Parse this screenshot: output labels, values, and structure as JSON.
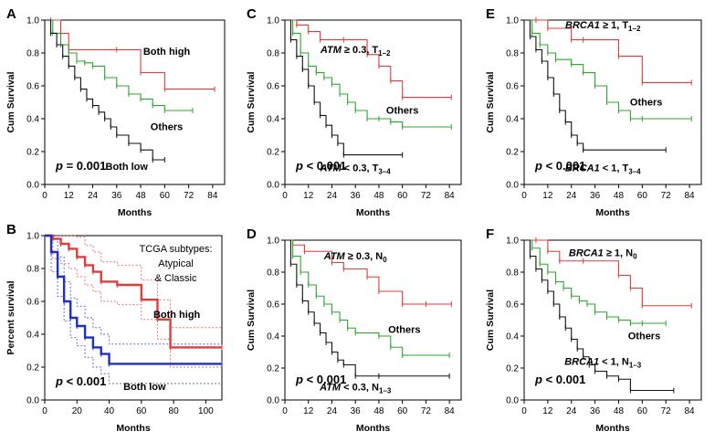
{
  "figure": "Kaplan-Meier survival curves (panels A–F)",
  "chart_data": [
    {
      "panel": "A",
      "type": "line",
      "xlabel": "Months",
      "ylabel": "Cum Survival",
      "xlim": [
        0,
        90
      ],
      "ylim": [
        0,
        1.0
      ],
      "xticks": [
        0,
        12,
        24,
        36,
        48,
        60,
        72,
        84
      ],
      "yticks": [
        0,
        0.2,
        0.4,
        0.6,
        0.8,
        1.0
      ],
      "p_value": {
        "prefix": "p",
        "rest": " = 0.001"
      },
      "series": [
        {
          "name": "Both high",
          "color": "#e03c3c",
          "x": [
            0,
            3,
            8,
            12,
            36,
            48,
            60,
            85
          ],
          "y": [
            1.0,
            1.0,
            0.92,
            0.82,
            0.82,
            0.68,
            0.58,
            0.58
          ]
        },
        {
          "name": "Others",
          "color": "#2aa82a",
          "x": [
            0,
            4,
            8,
            12,
            16,
            20,
            24,
            30,
            36,
            42,
            48,
            54,
            60,
            74
          ],
          "y": [
            1.0,
            0.92,
            0.85,
            0.8,
            0.75,
            0.74,
            0.72,
            0.65,
            0.6,
            0.55,
            0.52,
            0.48,
            0.45,
            0.45
          ]
        },
        {
          "name": "Both low",
          "color": "#111111",
          "x": [
            0,
            3,
            6,
            9,
            12,
            15,
            18,
            21,
            24,
            27,
            30,
            33,
            36,
            42,
            48,
            54,
            60
          ],
          "y": [
            1.0,
            0.92,
            0.85,
            0.78,
            0.72,
            0.65,
            0.58,
            0.52,
            0.48,
            0.44,
            0.4,
            0.35,
            0.3,
            0.25,
            0.21,
            0.15,
            0.15
          ]
        }
      ],
      "annotations": [
        {
          "text": "Both high",
          "x": 61,
          "y": 0.79
        },
        {
          "text": "Others",
          "x": 61,
          "y": 0.33
        },
        {
          "text": "Both low",
          "x": 41,
          "y": 0.09
        }
      ]
    },
    {
      "panel": "B",
      "type": "line",
      "xlabel": "Months",
      "ylabel": "Percent survival",
      "xlim": [
        0,
        110
      ],
      "ylim": [
        0,
        1.0
      ],
      "xticks": [
        0,
        20,
        40,
        60,
        80,
        100
      ],
      "yticks": [
        0,
        0.2,
        0.4,
        0.6,
        0.8,
        1.0
      ],
      "p_value": {
        "prefix": "p",
        "rest": " < 0.001"
      },
      "title_lines": [
        "TCGA subtypes:",
        "Atypical",
        "& Classic"
      ],
      "series": [
        {
          "name": "Both high",
          "color": "#e03c3c",
          "x": [
            0,
            5,
            10,
            15,
            20,
            25,
            30,
            35,
            45,
            60,
            70,
            78,
            110
          ],
          "y": [
            1.0,
            0.98,
            0.95,
            0.92,
            0.87,
            0.82,
            0.78,
            0.72,
            0.7,
            0.61,
            0.49,
            0.32,
            0.32
          ]
        },
        {
          "name": "Both low",
          "color": "#1f2fbf",
          "x": [
            0,
            4,
            8,
            12,
            16,
            20,
            25,
            30,
            35,
            40,
            110
          ],
          "y": [
            1.0,
            0.9,
            0.75,
            0.6,
            0.5,
            0.45,
            0.38,
            0.32,
            0.28,
            0.22,
            0.22
          ]
        }
      ],
      "annotations": [
        {
          "text": "Both high",
          "x": 82,
          "y": 0.5
        },
        {
          "text": "Both low",
          "x": 62,
          "y": 0.06
        }
      ]
    },
    {
      "panel": "C",
      "type": "line",
      "xlabel": "Months",
      "ylabel": "Cum Survival",
      "xlim": [
        0,
        90
      ],
      "ylim": [
        0,
        1.0
      ],
      "xticks": [
        0,
        12,
        24,
        36,
        48,
        60,
        72,
        84
      ],
      "yticks": [
        0,
        0.2,
        0.4,
        0.6,
        0.8,
        1.0
      ],
      "p_value": {
        "prefix": "p",
        "rest": " < 0.001"
      },
      "series": [
        {
          "name": "ATM ≥ 0.3, T1–2",
          "color": "#e03c3c",
          "x": [
            0,
            6,
            12,
            18,
            30,
            42,
            48,
            54,
            60,
            85
          ],
          "y": [
            1.0,
            0.97,
            0.93,
            0.88,
            0.88,
            0.79,
            0.72,
            0.63,
            0.53,
            0.53
          ]
        },
        {
          "name": "Others",
          "color": "#2aa82a",
          "x": [
            0,
            4,
            8,
            12,
            16,
            20,
            24,
            28,
            32,
            36,
            42,
            48,
            54,
            60,
            85
          ],
          "y": [
            1.0,
            0.92,
            0.8,
            0.72,
            0.68,
            0.65,
            0.61,
            0.55,
            0.5,
            0.45,
            0.4,
            0.4,
            0.38,
            0.35,
            0.35
          ]
        },
        {
          "name": "ATM < 0.3, T3–4",
          "color": "#111111",
          "x": [
            0,
            3,
            6,
            9,
            12,
            15,
            18,
            21,
            24,
            27,
            30,
            60
          ],
          "y": [
            1.0,
            0.88,
            0.78,
            0.7,
            0.6,
            0.5,
            0.42,
            0.36,
            0.3,
            0.25,
            0.18,
            0.18
          ]
        }
      ],
      "annotations": [
        {
          "text": "ATM ≥ 0.3, T1–2",
          "x": 36,
          "y": 0.8
        },
        {
          "text": "Others",
          "x": 60,
          "y": 0.43
        },
        {
          "text": "ATM < 0.3, T3–4",
          "x": 36,
          "y": 0.08
        }
      ]
    },
    {
      "panel": "D",
      "type": "line",
      "xlabel": "Months",
      "ylabel": "Cum Survival",
      "xlim": [
        0,
        90
      ],
      "ylim": [
        0,
        1.0
      ],
      "xticks": [
        0,
        12,
        24,
        36,
        48,
        60,
        72,
        84
      ],
      "yticks": [
        0,
        0.2,
        0.4,
        0.6,
        0.8,
        1.0
      ],
      "p_value": {
        "prefix": "p",
        "rest": " < 0.001"
      },
      "series": [
        {
          "name": "ATM ≥ 0.3, N0",
          "color": "#e03c3c",
          "x": [
            0,
            4,
            10,
            24,
            30,
            42,
            48,
            60,
            72,
            85
          ],
          "y": [
            1.0,
            0.97,
            0.93,
            0.86,
            0.82,
            0.77,
            0.68,
            0.6,
            0.6,
            0.6
          ]
        },
        {
          "name": "Others",
          "color": "#2aa82a",
          "x": [
            0,
            4,
            8,
            12,
            16,
            20,
            24,
            28,
            32,
            36,
            48,
            54,
            60,
            84
          ],
          "y": [
            1.0,
            0.9,
            0.8,
            0.72,
            0.65,
            0.6,
            0.55,
            0.5,
            0.45,
            0.42,
            0.4,
            0.33,
            0.28,
            0.28
          ]
        },
        {
          "name": "ATM < 0.3, N1–3",
          "color": "#111111",
          "x": [
            0,
            3,
            6,
            9,
            12,
            15,
            18,
            21,
            24,
            27,
            30,
            36,
            48,
            84
          ],
          "y": [
            1.0,
            0.85,
            0.72,
            0.62,
            0.55,
            0.48,
            0.42,
            0.36,
            0.3,
            0.25,
            0.22,
            0.15,
            0.15,
            0.15
          ]
        }
      ],
      "annotations": [
        {
          "text": "ATM ≥ 0.3, N0",
          "x": 36,
          "y": 0.88
        },
        {
          "text": "Others",
          "x": 61,
          "y": 0.42
        },
        {
          "text": "ATM < 0.3, N1–3",
          "x": 36,
          "y": 0.06
        }
      ]
    },
    {
      "panel": "E",
      "type": "line",
      "xlabel": "Months",
      "ylabel": "Cum Survival",
      "xlim": [
        0,
        90
      ],
      "ylim": [
        0,
        1.0
      ],
      "xticks": [
        0,
        12,
        24,
        36,
        48,
        60,
        72,
        84
      ],
      "yticks": [
        0,
        0.2,
        0.4,
        0.6,
        0.8,
        1.0
      ],
      "p_value": {
        "prefix": "p",
        "rest": " < 0.001"
      },
      "series": [
        {
          "name": "BRCA1 ≥ 1, T1–2",
          "color": "#e03c3c",
          "x": [
            0,
            6,
            12,
            24,
            30,
            48,
            60,
            85
          ],
          "y": [
            1.0,
            1.0,
            0.95,
            0.88,
            0.88,
            0.78,
            0.62,
            0.62
          ]
        },
        {
          "name": "Others",
          "color": "#2aa82a",
          "x": [
            0,
            4,
            8,
            12,
            16,
            24,
            30,
            36,
            42,
            48,
            54,
            60,
            85
          ],
          "y": [
            1.0,
            0.92,
            0.85,
            0.8,
            0.76,
            0.73,
            0.68,
            0.6,
            0.5,
            0.45,
            0.4,
            0.4,
            0.4
          ]
        },
        {
          "name": "BRCA1 < 1, T3–4",
          "color": "#111111",
          "x": [
            0,
            3,
            6,
            9,
            12,
            15,
            18,
            21,
            24,
            27,
            30,
            72
          ],
          "y": [
            1.0,
            0.9,
            0.82,
            0.75,
            0.65,
            0.55,
            0.45,
            0.38,
            0.3,
            0.25,
            0.21,
            0.21
          ]
        }
      ],
      "annotations": [
        {
          "text": "BRCA1 ≥ 1, T1–2",
          "x": 40,
          "y": 0.95
        },
        {
          "text": "Others",
          "x": 62,
          "y": 0.48
        },
        {
          "text": "BRCA1 < 1, T3–4",
          "x": 40,
          "y": 0.08
        }
      ]
    },
    {
      "panel": "F",
      "type": "line",
      "xlabel": "Months",
      "ylabel": "Cum Survival",
      "xlim": [
        0,
        90
      ],
      "ylim": [
        0,
        1.0
      ],
      "xticks": [
        0,
        12,
        24,
        36,
        48,
        60,
        72,
        84
      ],
      "yticks": [
        0,
        0.2,
        0.4,
        0.6,
        0.8,
        1.0
      ],
      "p_value": {
        "prefix": "p",
        "rest": " < 0.001"
      },
      "series": [
        {
          "name": "BRCA1 ≥ 1, N0",
          "color": "#e03c3c",
          "x": [
            0,
            6,
            12,
            18,
            30,
            48,
            54,
            60,
            85
          ],
          "y": [
            1.0,
            1.0,
            0.93,
            0.87,
            0.87,
            0.78,
            0.7,
            0.59,
            0.59
          ]
        },
        {
          "name": "Others",
          "color": "#2aa82a",
          "x": [
            0,
            4,
            8,
            12,
            16,
            20,
            24,
            28,
            32,
            36,
            42,
            48,
            54,
            60,
            72
          ],
          "y": [
            1.0,
            0.95,
            0.85,
            0.8,
            0.74,
            0.7,
            0.65,
            0.62,
            0.6,
            0.55,
            0.52,
            0.5,
            0.48,
            0.48,
            0.48
          ]
        },
        {
          "name": "BRCA1 < 1, N1–3",
          "color": "#111111",
          "x": [
            0,
            3,
            6,
            9,
            12,
            15,
            18,
            21,
            24,
            27,
            30,
            33,
            36,
            42,
            48,
            54,
            76
          ],
          "y": [
            1.0,
            0.9,
            0.82,
            0.75,
            0.68,
            0.6,
            0.52,
            0.45,
            0.38,
            0.32,
            0.27,
            0.22,
            0.18,
            0.15,
            0.13,
            0.06,
            0.06
          ]
        }
      ],
      "annotations": [
        {
          "text": "BRCA1 ≥ 1, N0",
          "x": 40,
          "y": 0.9
        },
        {
          "text": "Others",
          "x": 61,
          "y": 0.38
        },
        {
          "text": "BRCA1 < 1, N1–3",
          "x": 40,
          "y": 0.22
        }
      ]
    }
  ]
}
